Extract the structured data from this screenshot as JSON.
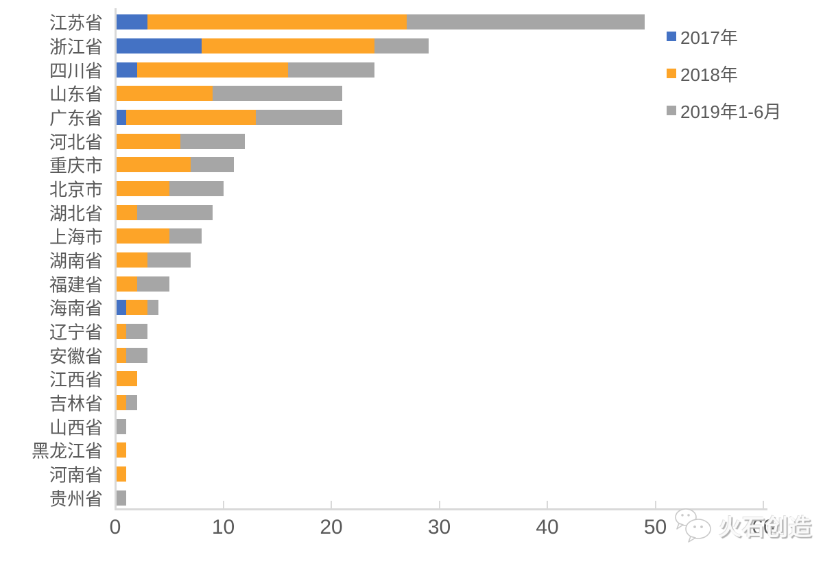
{
  "chart_data": {
    "type": "bar",
    "orientation": "horizontal",
    "stacked": true,
    "title": "",
    "xlabel": "",
    "ylabel": "",
    "xlim": [
      0,
      60
    ],
    "x_ticks": [
      0,
      10,
      20,
      30,
      40,
      50,
      60
    ],
    "grid": false,
    "legend_position": "right-top",
    "categories": [
      "江苏省",
      "浙江省",
      "四川省",
      "山东省",
      "广东省",
      "河北省",
      "重庆市",
      "北京市",
      "湖北省",
      "上海市",
      "湖南省",
      "福建省",
      "海南省",
      "辽宁省",
      "安徽省",
      "江西省",
      "吉林省",
      "山西省",
      "黑龙江省",
      "河南省",
      "贵州省"
    ],
    "series": [
      {
        "name": "2017年",
        "color": "#4472c4",
        "values": [
          3,
          8,
          2,
          0,
          1,
          0,
          0,
          0,
          0,
          0,
          0,
          0,
          1,
          0,
          0,
          0,
          0,
          0,
          0,
          0,
          0
        ]
      },
      {
        "name": "2018年",
        "color": "#fda428",
        "values": [
          24,
          16,
          14,
          9,
          12,
          6,
          7,
          5,
          2,
          5,
          3,
          2,
          2,
          1,
          1,
          2,
          1,
          0,
          1,
          1,
          0
        ]
      },
      {
        "name": "2019年1-6月",
        "color": "#a6a6a6",
        "values": [
          22,
          5,
          8,
          12,
          8,
          6,
          4,
          5,
          7,
          3,
          4,
          3,
          1,
          2,
          2,
          0,
          1,
          1,
          0,
          0,
          1
        ]
      }
    ]
  },
  "axis": {
    "tick_labels": [
      "0",
      "10",
      "20",
      "30",
      "40",
      "50",
      "60"
    ],
    "line_color": "#d9d9d9",
    "text_color": "#595959"
  },
  "legend": {
    "items": [
      {
        "label": "2017年",
        "color": "#4472c4"
      },
      {
        "label": "2018年",
        "color": "#fda428"
      },
      {
        "label": "2019年1-6月",
        "color": "#a6a6a6"
      }
    ]
  },
  "watermark": {
    "text": "火石创造",
    "icon": "wechat-logo"
  }
}
